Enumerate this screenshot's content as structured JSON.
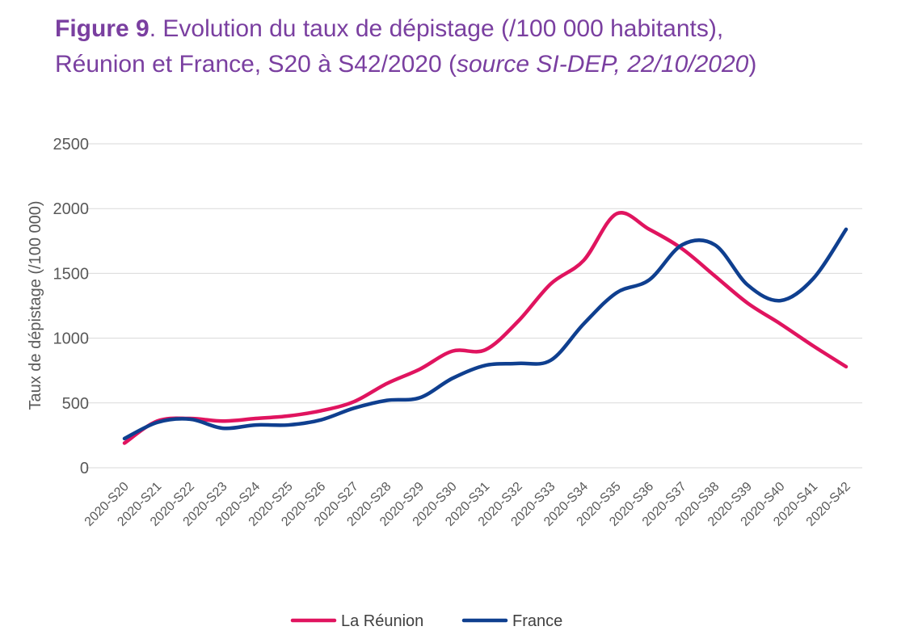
{
  "title": {
    "figure_label": "Figure 9",
    "line1_rest": ". Evolution du taux de dépistage (/100 000 habitants),",
    "line2_start": "Réunion et France, S20 à S42/2020 (",
    "line2_italic": "source SI-DEP, 22/10/2020",
    "line2_end": ")"
  },
  "colors": {
    "title": "#7a3fa0",
    "reunion": "#e0145f",
    "france": "#0f3f8f",
    "grid": "#d9d9d9",
    "axis_text": "#595959"
  },
  "chart_data": {
    "type": "line",
    "ylabel": "Taux de dépistage (/100 000)",
    "xlabel": "",
    "ylim": [
      0,
      2500
    ],
    "yticks": [
      0,
      500,
      1000,
      1500,
      2000,
      2500
    ],
    "grid": true,
    "legend_position": "bottom",
    "categories": [
      "2020-S20",
      "2020-S21",
      "2020-S22",
      "2020-S23",
      "2020-S24",
      "2020-S25",
      "2020-S26",
      "2020-S27",
      "2020-S28",
      "2020-S29",
      "2020-S30",
      "2020-S31",
      "2020-S32",
      "2020-S33",
      "2020-S34",
      "2020-S35",
      "2020-S36",
      "2020-S37",
      "2020-S38",
      "2020-S39",
      "2020-S40",
      "2020-S41",
      "2020-S42"
    ],
    "series": [
      {
        "name": "La Réunion",
        "color": "#e0145f",
        "values": [
          190,
          360,
          380,
          360,
          380,
          400,
          440,
          510,
          650,
          760,
          900,
          910,
          1130,
          1420,
          1600,
          1960,
          1840,
          1690,
          1480,
          1270,
          1110,
          940,
          780
        ]
      },
      {
        "name": "France",
        "color": "#0f3f8f",
        "values": [
          225,
          350,
          375,
          305,
          330,
          330,
          370,
          460,
          520,
          540,
          690,
          790,
          805,
          830,
          1110,
          1350,
          1450,
          1720,
          1720,
          1410,
          1290,
          1460,
          1840
        ]
      }
    ]
  }
}
